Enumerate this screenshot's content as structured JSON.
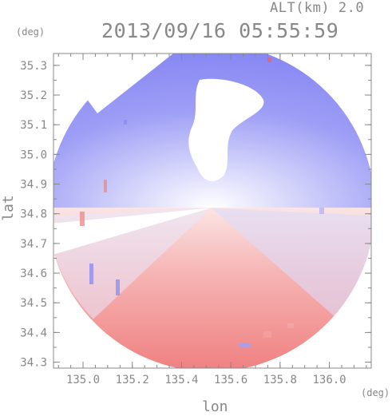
{
  "header": {
    "altitude_label": "ALT(km) 2.0",
    "timestamp": "2013/09/16 05:55:59"
  },
  "axes": {
    "x_title": "lon",
    "y_title": "lat",
    "x_unit": "(deg)",
    "y_unit": "(deg)",
    "x_ticks": [
      "135.0",
      "135.2",
      "135.4",
      "135.6",
      "135.8",
      "136.0"
    ],
    "x_tick_values": [
      135.0,
      135.2,
      135.4,
      135.6,
      135.8,
      136.0
    ],
    "y_ticks": [
      "35.3",
      "35.2",
      "35.1",
      "35.0",
      "34.9",
      "34.8",
      "34.7",
      "34.6",
      "34.5",
      "34.4",
      "34.3"
    ],
    "y_tick_values": [
      35.3,
      35.2,
      35.1,
      35.0,
      34.9,
      34.8,
      34.7,
      34.6,
      34.5,
      34.4,
      34.3
    ],
    "x_range": [
      134.88,
      136.17
    ],
    "y_range": [
      34.28,
      35.34
    ]
  },
  "radar": {
    "center_lon": 135.52,
    "center_lat": 34.82,
    "colors": {
      "away": "#f06060",
      "toward": "#6f6ff2",
      "neutral": "#ffffff",
      "axis": "#888888",
      "grid": "#cccccc"
    }
  }
}
